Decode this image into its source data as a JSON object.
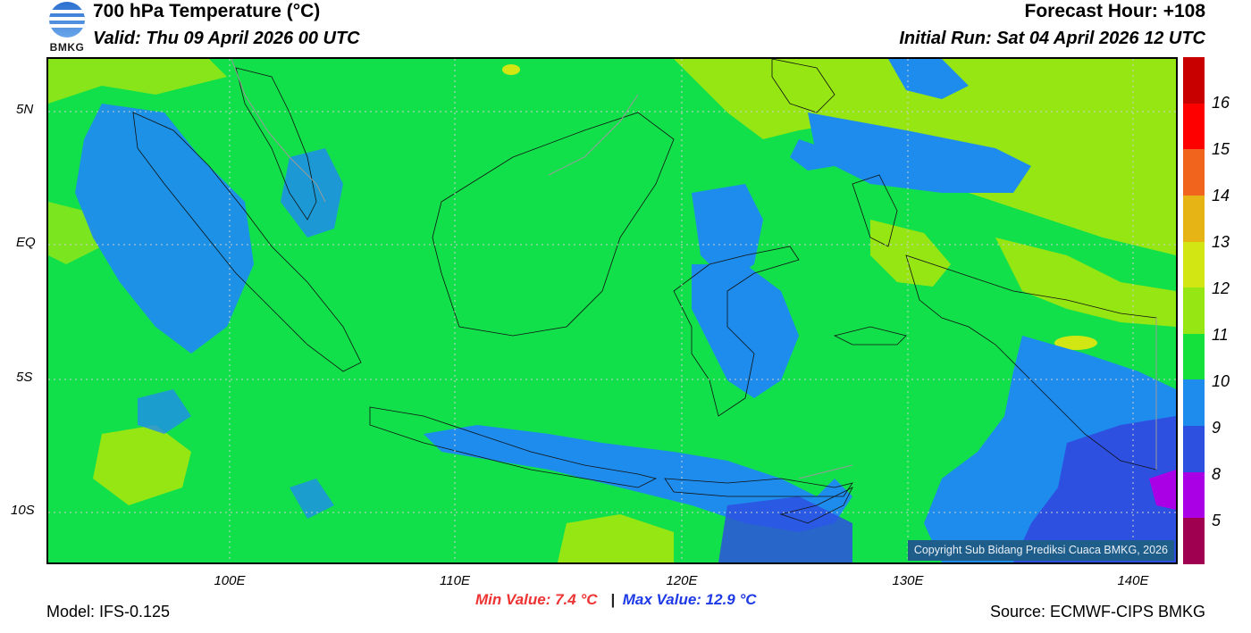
{
  "header": {
    "logo_text": "BMKG",
    "title": "700 hPa Temperature (°C)",
    "valid": "Valid: Thu 09 April 2026 00 UTC",
    "forecast_hour": "Forecast Hour: +108",
    "initial_run": "Initial Run: Sat 04 April 2026 12 UTC"
  },
  "map": {
    "copyright": "Copyright Sub Bidang Prediksi Cuaca BMKG, 2026",
    "lat_labels": [
      "5N",
      "EQ",
      "5S",
      "10S"
    ],
    "lon_labels": [
      "100E",
      "110E",
      "120E",
      "130E",
      "140E"
    ]
  },
  "colorbar": {
    "labels": [
      "16",
      "15",
      "14",
      "13",
      "12",
      "11",
      "10",
      "9",
      "8",
      "5"
    ],
    "colors": [
      "#c80000",
      "#ff0000",
      "#f0641e",
      "#e6b414",
      "#d2e614",
      "#96e614",
      "#14e13c",
      "#1e8ced",
      "#2d50e1",
      "#aa00e6",
      "#a00050"
    ]
  },
  "footer": {
    "min_value": "Min Value: 7.4 °C",
    "separator": "|",
    "max_value": "Max Value: 12.9 °C",
    "model": "Model: IFS-0.125",
    "source": "Source: ECMWF-CIPS BMKG"
  }
}
